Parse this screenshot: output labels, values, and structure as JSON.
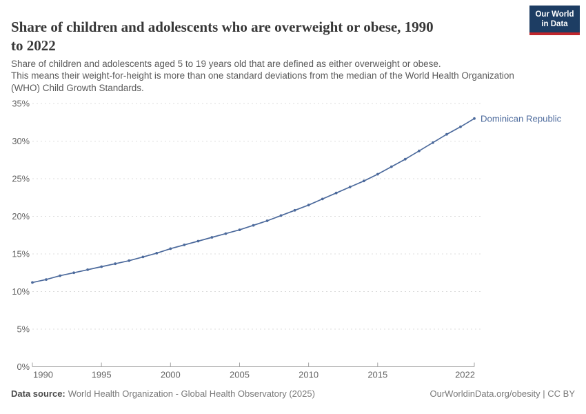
{
  "header": {
    "title": "Share of children and adolescents who are overweight or obese, 1990\nto 2022",
    "logo": {
      "line1": "Our World",
      "line2": "in Data"
    }
  },
  "subtitle": "Share of children and adolescents aged 5 to 19 years old that are defined as either overweight or obese.\nThis means their weight-for-height is more than one standard deviations from the median of the World Health Organization\n(WHO) Child Growth Standards.",
  "chart_data": {
    "type": "line",
    "title": "Share of children and adolescents who are overweight or obese, 1990 to 2022",
    "xlabel": "",
    "ylabel": "",
    "x": [
      1990,
      1991,
      1992,
      1993,
      1994,
      1995,
      1996,
      1997,
      1998,
      1999,
      2000,
      2001,
      2002,
      2003,
      2004,
      2005,
      2006,
      2007,
      2008,
      2009,
      2010,
      2011,
      2012,
      2013,
      2014,
      2015,
      2016,
      2017,
      2018,
      2019,
      2020,
      2021,
      2022
    ],
    "series": [
      {
        "name": "Dominican Republic",
        "color": "#4C6A9C",
        "values": [
          11.2,
          11.6,
          12.1,
          12.5,
          12.9,
          13.3,
          13.7,
          14.1,
          14.6,
          15.1,
          15.7,
          16.2,
          16.7,
          17.2,
          17.7,
          18.2,
          18.8,
          19.4,
          20.1,
          20.8,
          21.5,
          22.3,
          23.1,
          23.9,
          24.7,
          25.6,
          26.6,
          27.6,
          28.7,
          29.8,
          30.9,
          31.9,
          33.0
        ]
      }
    ],
    "ylim": [
      0,
      35
    ],
    "yticks": [
      0,
      5,
      10,
      15,
      20,
      25,
      30,
      35
    ],
    "ytick_suffix": "%",
    "xticks": [
      1990,
      1995,
      2000,
      2005,
      2010,
      2015,
      2022
    ],
    "grid": "horizontal-dashed",
    "legend": "end-of-line-label",
    "end_label": "Dominican Republic"
  },
  "footer": {
    "source_label": "Data source:",
    "source_text": "World Health Organization - Global Health Observatory (2025)",
    "credit": "OurWorldinData.org/obesity | CC BY"
  },
  "colors": {
    "line": "#4C6A9C",
    "logo_bg": "#1d3d63",
    "logo_stripe": "#c0262c",
    "grid": "#dcdcdc",
    "axis": "#a3a3a3",
    "tick_label": "#646464"
  }
}
